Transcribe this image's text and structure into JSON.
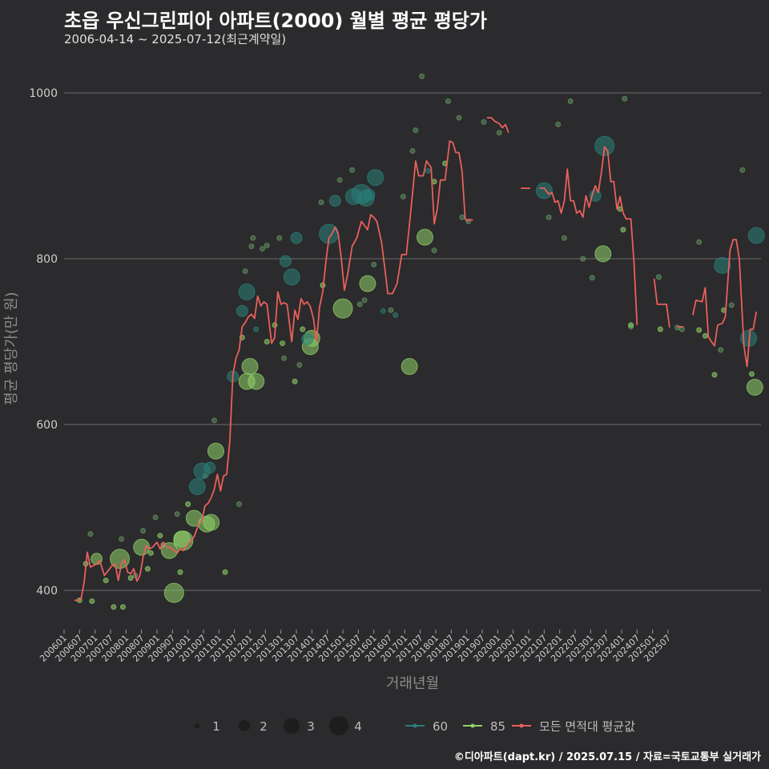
{
  "title": "초읍 우신그린피아 아파트(2000) 월별 평균 평당가",
  "subtitle": "2006-04-14 ~ 2025-07-12(최근계약일)",
  "caption": "©디아파트(dapt.kr) / 2025.07.15 / 자료=국토교통부 실거래가",
  "colors": {
    "background": "#2b2a2c",
    "grid": "#5f5f5f",
    "s60": "#2a7f7a",
    "s85": "#8fd16a",
    "avg": "#e8605c"
  },
  "chart_data": {
    "type": "line+scatter",
    "title": "초읍 우신그린피아 아파트(2000) 월별 평균 평당가",
    "xlabel": "거래년월",
    "ylabel": "평균 평당가(만 원)",
    "ylim": [
      350,
      1020
    ],
    "yticks": [
      400,
      600,
      800,
      1000
    ],
    "xticks": [
      "200601",
      "200607",
      "200701",
      "200707",
      "200801",
      "200807",
      "200901",
      "200907",
      "201001",
      "201007",
      "201101",
      "201107",
      "201201",
      "201207",
      "201301",
      "201307",
      "201401",
      "201407",
      "201501",
      "201507",
      "201601",
      "201607",
      "201701",
      "201707",
      "201801",
      "201807",
      "201901",
      "201907",
      "202001",
      "202007",
      "202101",
      "202107",
      "202201",
      "202207",
      "202301",
      "202307",
      "202401",
      "202407",
      "202501",
      "202507"
    ],
    "legend": {
      "size_title": "",
      "sizes": [
        {
          "label": "1",
          "value": 1
        },
        {
          "label": "2",
          "value": 2
        },
        {
          "label": "3",
          "value": 3
        },
        {
          "label": "4",
          "value": 4
        }
      ],
      "series": [
        {
          "label": "60",
          "key": "s60"
        },
        {
          "label": "85",
          "key": "s85"
        },
        {
          "label": "모든 면적대 평균값",
          "key": "avg"
        }
      ]
    },
    "avg_segments": [
      [
        [
          2006.33,
          388
        ],
        [
          2006.45,
          388
        ],
        [
          2006.55,
          390
        ],
        [
          2006.65,
          410
        ],
        [
          2006.75,
          446
        ],
        [
          2006.85,
          428
        ],
        [
          2006.95,
          430
        ],
        [
          2007.05,
          432
        ],
        [
          2007.15,
          436
        ],
        [
          2007.3,
          418
        ],
        [
          2007.45,
          425
        ],
        [
          2007.55,
          430
        ],
        [
          2007.65,
          432
        ],
        [
          2007.75,
          412
        ],
        [
          2007.85,
          432
        ],
        [
          2007.95,
          437
        ],
        [
          2008.05,
          422
        ],
        [
          2008.15,
          420
        ],
        [
          2008.25,
          426
        ],
        [
          2008.35,
          411
        ],
        [
          2008.45,
          418
        ],
        [
          2008.55,
          440
        ],
        [
          2008.65,
          454
        ],
        [
          2008.75,
          450
        ],
        [
          2008.85,
          452
        ],
        [
          2009.0,
          458
        ],
        [
          2009.1,
          450
        ],
        [
          2009.2,
          458
        ],
        [
          2009.3,
          452
        ],
        [
          2009.4,
          452
        ],
        [
          2009.55,
          448
        ],
        [
          2009.65,
          445
        ],
        [
          2009.75,
          450
        ],
        [
          2009.85,
          448
        ],
        [
          2010.0,
          456
        ],
        [
          2010.1,
          460
        ],
        [
          2010.2,
          465
        ],
        [
          2010.35,
          480
        ],
        [
          2010.45,
          485
        ],
        [
          2010.55,
          502
        ],
        [
          2010.65,
          505
        ],
        [
          2010.75,
          512
        ],
        [
          2010.85,
          522
        ],
        [
          2010.95,
          540
        ],
        [
          2011.05,
          520
        ],
        [
          2011.15,
          538
        ],
        [
          2011.25,
          540
        ],
        [
          2011.35,
          580
        ],
        [
          2011.45,
          660
        ],
        [
          2011.55,
          680
        ],
        [
          2011.65,
          690
        ],
        [
          2011.75,
          718
        ],
        [
          2011.85,
          723
        ],
        [
          2011.95,
          730
        ],
        [
          2012.05,
          733
        ],
        [
          2012.15,
          728
        ],
        [
          2012.25,
          755
        ],
        [
          2012.35,
          743
        ],
        [
          2012.45,
          748
        ],
        [
          2012.55,
          745
        ],
        [
          2012.7,
          698
        ],
        [
          2012.8,
          705
        ],
        [
          2012.9,
          760
        ],
        [
          2013.0,
          745
        ],
        [
          2013.1,
          747
        ],
        [
          2013.2,
          745
        ],
        [
          2013.35,
          700
        ],
        [
          2013.45,
          738
        ],
        [
          2013.55,
          727
        ],
        [
          2013.65,
          752
        ],
        [
          2013.75,
          745
        ],
        [
          2013.85,
          748
        ],
        [
          2013.95,
          742
        ],
        [
          2014.05,
          728
        ],
        [
          2014.15,
          700
        ],
        [
          2014.25,
          742
        ],
        [
          2014.35,
          760
        ],
        [
          2014.45,
          795
        ],
        [
          2014.55,
          825
        ],
        [
          2014.65,
          830
        ],
        [
          2014.75,
          838
        ],
        [
          2014.85,
          830
        ],
        [
          2014.95,
          800
        ],
        [
          2015.05,
          762
        ],
        [
          2015.15,
          780
        ],
        [
          2015.3,
          815
        ],
        [
          2015.45,
          825
        ],
        [
          2015.6,
          845
        ],
        [
          2015.7,
          840
        ],
        [
          2015.8,
          835
        ],
        [
          2015.9,
          853
        ],
        [
          2016.0,
          850
        ],
        [
          2016.1,
          845
        ],
        [
          2016.25,
          820
        ],
        [
          2016.35,
          790
        ],
        [
          2016.45,
          758
        ],
        [
          2016.6,
          758
        ],
        [
          2016.75,
          770
        ],
        [
          2016.9,
          805
        ],
        [
          2017.05,
          805
        ],
        [
          2017.2,
          860
        ],
        [
          2017.35,
          918
        ],
        [
          2017.45,
          900
        ],
        [
          2017.6,
          900
        ],
        [
          2017.7,
          918
        ],
        [
          2017.85,
          910
        ],
        [
          2017.95,
          842
        ],
        [
          2018.05,
          860
        ],
        [
          2018.15,
          895
        ],
        [
          2018.3,
          895
        ],
        [
          2018.45,
          942
        ],
        [
          2018.55,
          940
        ],
        [
          2018.65,
          928
        ],
        [
          2018.75,
          928
        ],
        [
          2018.85,
          905
        ],
        [
          2018.95,
          848
        ],
        [
          2019.05,
          845
        ]
      ],
      [
        [
          2019.05,
          847
        ],
        [
          2019.2,
          847
        ]
      ],
      [
        [
          2019.65,
          970
        ],
        [
          2019.8,
          970
        ],
        [
          2019.9,
          966
        ],
        [
          2020.05,
          963
        ],
        [
          2020.15,
          958
        ],
        [
          2020.25,
          962
        ],
        [
          2020.35,
          952
        ]
      ],
      [
        [
          2020.75,
          885
        ],
        [
          2021.05,
          885
        ]
      ],
      [
        [
          2021.35,
          885
        ],
        [
          2021.5,
          885
        ],
        [
          2021.65,
          878
        ],
        [
          2021.75,
          880
        ],
        [
          2021.85,
          868
        ],
        [
          2021.95,
          870
        ],
        [
          2022.05,
          855
        ],
        [
          2022.15,
          870
        ],
        [
          2022.25,
          908
        ],
        [
          2022.35,
          870
        ],
        [
          2022.45,
          870
        ],
        [
          2022.55,
          855
        ],
        [
          2022.65,
          858
        ],
        [
          2022.75,
          850
        ],
        [
          2022.85,
          876
        ],
        [
          2022.95,
          862
        ],
        [
          2023.05,
          877
        ],
        [
          2023.15,
          888
        ],
        [
          2023.25,
          880
        ],
        [
          2023.35,
          905
        ],
        [
          2023.45,
          935
        ],
        [
          2023.55,
          930
        ],
        [
          2023.65,
          893
        ],
        [
          2023.75,
          893
        ],
        [
          2023.85,
          860
        ],
        [
          2023.95,
          875
        ],
        [
          2024.05,
          855
        ],
        [
          2024.15,
          848
        ],
        [
          2024.3,
          848
        ],
        [
          2024.4,
          795
        ],
        [
          2024.5,
          720
        ]
      ],
      [
        [
          2025.05,
          776
        ],
        [
          2025.15,
          745
        ],
        [
          2025.3,
          745
        ],
        [
          2025.45,
          745
        ],
        [
          2025.55,
          717
        ]
      ],
      [
        [
          2025.8,
          718
        ],
        [
          2026.0,
          718
        ]
      ],
      [
        [
          2026.3,
          732
        ],
        [
          2026.4,
          750
        ],
        [
          2026.5,
          749
        ],
        [
          2026.6,
          748
        ],
        [
          2026.7,
          765
        ],
        [
          2026.8,
          706
        ],
        [
          2026.9,
          700
        ],
        [
          2027.0,
          695
        ],
        [
          2027.1,
          720
        ],
        [
          2027.25,
          722
        ],
        [
          2027.35,
          730
        ],
        [
          2027.5,
          810
        ],
        [
          2027.6,
          823
        ],
        [
          2027.7,
          823
        ],
        [
          2027.8,
          800
        ],
        [
          2027.95,
          695
        ],
        [
          2028.05,
          670
        ],
        [
          2028.15,
          715
        ],
        [
          2028.25,
          715
        ],
        [
          2028.35,
          736
        ]
      ]
    ],
    "points_60": [
      [
        2010.3,
        525,
        3
      ],
      [
        2010.45,
        544,
        3
      ],
      [
        2010.7,
        548,
        2
      ],
      [
        2011.45,
        658,
        2
      ],
      [
        2011.75,
        737,
        2
      ],
      [
        2011.9,
        760,
        3
      ],
      [
        2013.15,
        797,
        2
      ],
      [
        2013.35,
        778,
        3
      ],
      [
        2013.5,
        825,
        2
      ],
      [
        2014.55,
        830,
        4
      ],
      [
        2014.75,
        870,
        2
      ],
      [
        2015.35,
        875,
        3
      ],
      [
        2015.6,
        878,
        4
      ],
      [
        2015.75,
        873,
        3
      ],
      [
        2016.05,
        898,
        3
      ],
      [
        2016.3,
        737,
        1
      ],
      [
        2017.75,
        906,
        1
      ],
      [
        2021.5,
        882,
        3
      ],
      [
        2023.45,
        936,
        4
      ],
      [
        2023.15,
        876,
        2
      ],
      [
        2027.25,
        792,
        3
      ],
      [
        2028.1,
        704,
        3
      ],
      [
        2028.35,
        828,
        3
      ],
      [
        2012.2,
        715,
        1
      ],
      [
        2013.85,
        703,
        2
      ],
      [
        2016.7,
        732,
        1
      ],
      [
        2015.85,
        877,
        2
      ]
    ],
    "points_85": [
      [
        2006.7,
        432,
        1
      ],
      [
        2007.05,
        438,
        2
      ],
      [
        2007.35,
        412,
        1
      ],
      [
        2007.8,
        438,
        4
      ],
      [
        2008.15,
        415,
        1
      ],
      [
        2008.5,
        452,
        3
      ],
      [
        2008.8,
        445,
        1
      ],
      [
        2009.4,
        448,
        3
      ],
      [
        2009.55,
        397,
        4
      ],
      [
        2009.8,
        462,
        3
      ],
      [
        2009.85,
        460,
        4
      ],
      [
        2010.2,
        487,
        3
      ],
      [
        2010.6,
        480,
        3
      ],
      [
        2010.75,
        482,
        3
      ],
      [
        2010.9,
        568,
        3
      ],
      [
        2011.2,
        422,
        1
      ],
      [
        2011.75,
        705,
        1
      ],
      [
        2011.9,
        652,
        3
      ],
      [
        2012.0,
        670,
        3
      ],
      [
        2012.2,
        652,
        3
      ],
      [
        2012.55,
        700,
        1
      ],
      [
        2012.8,
        720,
        1
      ],
      [
        2013.05,
        698,
        1
      ],
      [
        2013.45,
        652,
        1
      ],
      [
        2013.7,
        715,
        1
      ],
      [
        2013.95,
        694,
        3
      ],
      [
        2014.0,
        704,
        3
      ],
      [
        2014.35,
        768,
        1
      ],
      [
        2015.0,
        740,
        4
      ],
      [
        2015.8,
        770,
        3
      ],
      [
        2017.15,
        670,
        3
      ],
      [
        2017.65,
        826,
        3
      ],
      [
        2017.95,
        893,
        1
      ],
      [
        2018.3,
        915,
        1
      ],
      [
        2023.4,
        806,
        3
      ],
      [
        2023.95,
        860,
        1
      ],
      [
        2024.05,
        835,
        1
      ],
      [
        2024.3,
        720,
        1
      ],
      [
        2025.25,
        715,
        1
      ],
      [
        2026.5,
        714,
        1
      ],
      [
        2026.7,
        707,
        1
      ],
      [
        2027.0,
        660,
        1
      ],
      [
        2027.3,
        738,
        1
      ],
      [
        2028.2,
        661,
        1
      ],
      [
        2028.3,
        645,
        3
      ],
      [
        2006.5,
        388,
        1
      ],
      [
        2006.9,
        387,
        1
      ],
      [
        2007.6,
        380,
        1
      ],
      [
        2007.9,
        380,
        1
      ],
      [
        2009.1,
        466,
        1
      ],
      [
        2009.75,
        422,
        1
      ],
      [
        2010.0,
        504,
        1
      ],
      [
        2008.7,
        426,
        1
      ]
    ],
    "points_faint": [
      [
        2006.85,
        468,
        1
      ],
      [
        2007.85,
        462,
        1
      ],
      [
        2008.3,
        418,
        1
      ],
      [
        2008.55,
        472,
        1
      ],
      [
        2008.95,
        488,
        1
      ],
      [
        2009.2,
        455,
        1
      ],
      [
        2009.65,
        492,
        1
      ],
      [
        2010.55,
        538,
        1
      ],
      [
        2010.85,
        605,
        1
      ],
      [
        2011.65,
        504,
        1
      ],
      [
        2011.85,
        785,
        1
      ],
      [
        2012.05,
        815,
        1
      ],
      [
        2012.1,
        825,
        1
      ],
      [
        2012.4,
        812,
        1
      ],
      [
        2012.55,
        816,
        1
      ],
      [
        2012.95,
        825,
        1
      ],
      [
        2013.1,
        680,
        1
      ],
      [
        2013.6,
        672,
        1
      ],
      [
        2014.3,
        868,
        1
      ],
      [
        2014.9,
        895,
        1
      ],
      [
        2015.3,
        907,
        1
      ],
      [
        2015.55,
        745,
        1
      ],
      [
        2015.7,
        750,
        1
      ],
      [
        2016.0,
        793,
        1
      ],
      [
        2016.55,
        738,
        1
      ],
      [
        2016.95,
        875,
        1
      ],
      [
        2017.25,
        930,
        1
      ],
      [
        2017.35,
        955,
        1
      ],
      [
        2017.55,
        1020,
        1
      ],
      [
        2017.95,
        810,
        1
      ],
      [
        2018.4,
        990,
        1
      ],
      [
        2018.75,
        970,
        1
      ],
      [
        2018.85,
        850,
        1
      ],
      [
        2019.05,
        845,
        1
      ],
      [
        2019.55,
        965,
        1
      ],
      [
        2020.05,
        952,
        1
      ],
      [
        2021.65,
        850,
        1
      ],
      [
        2021.95,
        962,
        1
      ],
      [
        2022.15,
        825,
        1
      ],
      [
        2022.35,
        990,
        1
      ],
      [
        2022.75,
        800,
        1
      ],
      [
        2023.05,
        777,
        1
      ],
      [
        2024.1,
        993,
        1
      ],
      [
        2024.3,
        718,
        1
      ],
      [
        2025.2,
        778,
        1
      ],
      [
        2025.8,
        717,
        1
      ],
      [
        2026.5,
        820,
        1
      ],
      [
        2027.2,
        690,
        1
      ],
      [
        2027.9,
        907,
        1
      ],
      [
        2027.55,
        744,
        1
      ],
      [
        2025.95,
        715,
        1
      ]
    ]
  }
}
